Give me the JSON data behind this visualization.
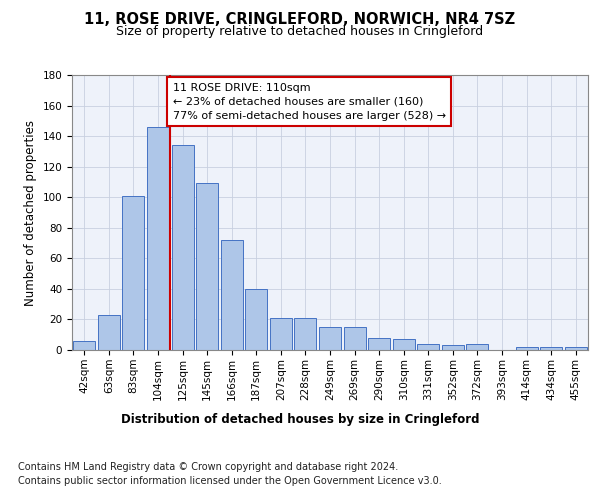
{
  "title": "11, ROSE DRIVE, CRINGLEFORD, NORWICH, NR4 7SZ",
  "subtitle": "Size of property relative to detached houses in Cringleford",
  "xlabel": "Distribution of detached houses by size in Cringleford",
  "ylabel": "Number of detached properties",
  "bar_color": "#aec6e8",
  "bar_edge_color": "#4472c4",
  "background_color": "#eef2fa",
  "grid_color": "#c8d0e0",
  "categories": [
    "42sqm",
    "63sqm",
    "83sqm",
    "104sqm",
    "125sqm",
    "145sqm",
    "166sqm",
    "187sqm",
    "207sqm",
    "228sqm",
    "249sqm",
    "269sqm",
    "290sqm",
    "310sqm",
    "331sqm",
    "352sqm",
    "372sqm",
    "393sqm",
    "414sqm",
    "434sqm",
    "455sqm"
  ],
  "values": [
    6,
    23,
    101,
    146,
    134,
    109,
    72,
    40,
    21,
    21,
    15,
    15,
    8,
    7,
    4,
    3,
    4,
    0,
    2,
    2,
    2
  ],
  "ylim": [
    0,
    180
  ],
  "yticks": [
    0,
    20,
    40,
    60,
    80,
    100,
    120,
    140,
    160,
    180
  ],
  "vline_x": 3.5,
  "vline_color": "#cc0000",
  "annotation_text": "11 ROSE DRIVE: 110sqm\n← 23% of detached houses are smaller (160)\n77% of semi-detached houses are larger (528) →",
  "annotation_box_color": "#ffffff",
  "annotation_box_edge": "#cc0000",
  "footer_line1": "Contains HM Land Registry data © Crown copyright and database right 2024.",
  "footer_line2": "Contains public sector information licensed under the Open Government Licence v3.0.",
  "title_fontsize": 10.5,
  "subtitle_fontsize": 9,
  "axis_label_fontsize": 8.5,
  "tick_fontsize": 7.5,
  "annotation_fontsize": 8,
  "footer_fontsize": 7
}
